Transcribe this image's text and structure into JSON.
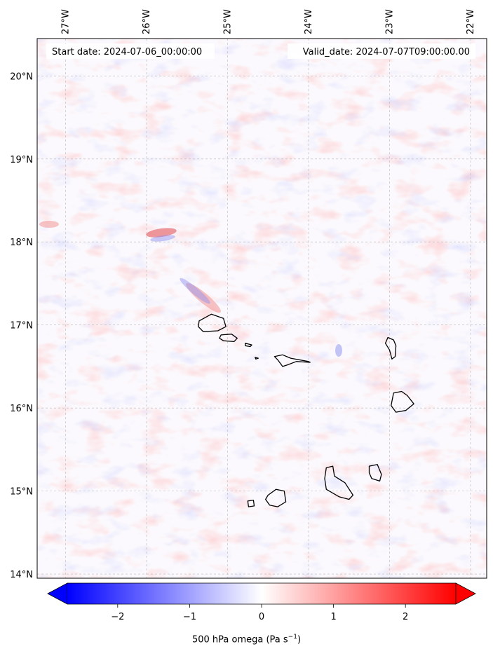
{
  "map": {
    "lon_range": [
      -27.35,
      -21.8
    ],
    "lat_range": [
      13.95,
      20.45
    ],
    "lon_ticks": [
      {
        "value": -27,
        "label": "27°W"
      },
      {
        "value": -26,
        "label": "26°W"
      },
      {
        "value": -25,
        "label": "25°W"
      },
      {
        "value": -24,
        "label": "24°W"
      },
      {
        "value": -23,
        "label": "23°W"
      },
      {
        "value": -22,
        "label": "22°W"
      }
    ],
    "lat_ticks": [
      {
        "value": 20,
        "label": "20°N"
      },
      {
        "value": 19,
        "label": "19°N"
      },
      {
        "value": 18,
        "label": "18°N"
      },
      {
        "value": 17,
        "label": "17°N"
      },
      {
        "value": 16,
        "label": "16°N"
      },
      {
        "value": 15,
        "label": "15°N"
      },
      {
        "value": 14,
        "label": "14°N"
      }
    ],
    "gridlines": true,
    "start_date": "Start date: 2024-07-06_00:00:00",
    "valid_date": "Valid_date: 2024-07-07T09:00:00.00",
    "islands": [
      {
        "name": "Santo Antão",
        "points": [
          [
            -25.35,
            17.05
          ],
          [
            -25.2,
            17.13
          ],
          [
            -25.05,
            17.08
          ],
          [
            -25.02,
            16.98
          ],
          [
            -25.12,
            16.93
          ],
          [
            -25.3,
            16.92
          ],
          [
            -25.36,
            16.98
          ]
        ]
      },
      {
        "name": "São Vicente",
        "points": [
          [
            -25.08,
            16.88
          ],
          [
            -24.95,
            16.89
          ],
          [
            -24.88,
            16.84
          ],
          [
            -24.92,
            16.8
          ],
          [
            -25.05,
            16.81
          ],
          [
            -25.1,
            16.84
          ]
        ]
      },
      {
        "name": "Santa Luzia",
        "points": [
          [
            -24.78,
            16.78
          ],
          [
            -24.7,
            16.76
          ],
          [
            -24.72,
            16.74
          ],
          [
            -24.78,
            16.75
          ]
        ]
      },
      {
        "name": "Branco",
        "points": [
          [
            -24.66,
            16.61
          ],
          [
            -24.62,
            16.6
          ],
          [
            -24.65,
            16.59
          ]
        ]
      },
      {
        "name": "São Nicolau",
        "points": [
          [
            -24.42,
            16.62
          ],
          [
            -24.32,
            16.64
          ],
          [
            -24.22,
            16.6
          ],
          [
            -24.0,
            16.56
          ],
          [
            -23.98,
            16.55
          ],
          [
            -24.15,
            16.56
          ],
          [
            -24.26,
            16.52
          ],
          [
            -24.32,
            16.5
          ],
          [
            -24.38,
            16.58
          ]
        ]
      },
      {
        "name": "Sal",
        "points": [
          [
            -23.02,
            16.85
          ],
          [
            -22.95,
            16.82
          ],
          [
            -22.92,
            16.75
          ],
          [
            -22.93,
            16.62
          ],
          [
            -22.97,
            16.59
          ],
          [
            -23.0,
            16.7
          ],
          [
            -23.05,
            16.78
          ]
        ]
      },
      {
        "name": "Boa Vista",
        "points": [
          [
            -22.95,
            16.18
          ],
          [
            -22.85,
            16.2
          ],
          [
            -22.78,
            16.15
          ],
          [
            -22.7,
            16.05
          ],
          [
            -22.8,
            15.97
          ],
          [
            -22.92,
            15.95
          ],
          [
            -22.98,
            16.03
          ]
        ]
      },
      {
        "name": "Maio",
        "points": [
          [
            -23.25,
            15.3
          ],
          [
            -23.15,
            15.32
          ],
          [
            -23.1,
            15.2
          ],
          [
            -23.12,
            15.12
          ],
          [
            -23.22,
            15.15
          ],
          [
            -23.25,
            15.22
          ]
        ]
      },
      {
        "name": "Santiago",
        "points": [
          [
            -23.78,
            15.28
          ],
          [
            -23.7,
            15.3
          ],
          [
            -23.68,
            15.18
          ],
          [
            -23.55,
            15.1
          ],
          [
            -23.45,
            14.95
          ],
          [
            -23.5,
            14.9
          ],
          [
            -23.62,
            14.93
          ],
          [
            -23.78,
            15.02
          ],
          [
            -23.8,
            15.15
          ]
        ]
      },
      {
        "name": "Fogo",
        "points": [
          [
            -24.5,
            14.95
          ],
          [
            -24.4,
            15.02
          ],
          [
            -24.3,
            15.0
          ],
          [
            -24.28,
            14.87
          ],
          [
            -24.38,
            14.81
          ],
          [
            -24.48,
            14.83
          ],
          [
            -24.53,
            14.9
          ]
        ]
      },
      {
        "name": "Brava",
        "points": [
          [
            -24.75,
            14.88
          ],
          [
            -24.68,
            14.89
          ],
          [
            -24.67,
            14.82
          ],
          [
            -24.74,
            14.81
          ]
        ]
      }
    ]
  },
  "colorbar": {
    "vmin": -2.7,
    "vmax": 2.7,
    "colors": {
      "low": "#0000ff",
      "mid": "#ffffff",
      "high": "#ff0000"
    },
    "ticks": [
      {
        "value": -2,
        "label": "−2"
      },
      {
        "value": -1,
        "label": "−1"
      },
      {
        "value": 0,
        "label": "0"
      },
      {
        "value": 1,
        "label": "1"
      },
      {
        "value": 2,
        "label": "2"
      }
    ],
    "extend": "both"
  },
  "caption": {
    "prefix": "500 hPa omega (Pa s",
    "superscript": "−1",
    "suffix": ")"
  }
}
